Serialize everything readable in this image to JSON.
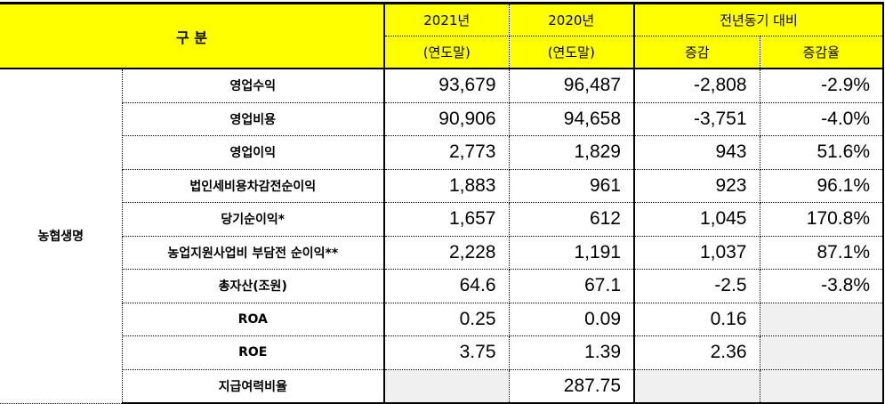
{
  "header": {
    "category": "구    분",
    "col_2021": "2021년",
    "col_2020": "2020년",
    "col_yoy": "전년동기 대비",
    "sub_2021": "(연도말)",
    "sub_2020": "(연도말)",
    "sub_change": "증감",
    "sub_rate": "증감율"
  },
  "group": "농협생명",
  "rows": [
    {
      "label": "영업수익",
      "y2021": "93,679",
      "y2020": "96,487",
      "change": "-2,808",
      "rate": "-2.9%"
    },
    {
      "label": "영업비용",
      "y2021": "90,906",
      "y2020": "94,658",
      "change": "-3,751",
      "rate": "-4.0%"
    },
    {
      "label": "영업이익",
      "y2021": "2,773",
      "y2020": "1,829",
      "change": "943",
      "rate": "51.6%"
    },
    {
      "label": "법인세비용차감전순이익",
      "y2021": "1,883",
      "y2020": "961",
      "change": "923",
      "rate": "96.1%"
    },
    {
      "label": "당기순이익*",
      "y2021": "1,657",
      "y2020": "612",
      "change": "1,045",
      "rate": "170.8%"
    },
    {
      "label": "농업지원사업비 부담전 순이익**",
      "y2021": "2,228",
      "y2020": "1,191",
      "change": "1,037",
      "rate": "87.1%"
    },
    {
      "label": "총자산(조원)",
      "y2021": "64.6",
      "y2020": "67.1",
      "change": "-2.5",
      "rate": "-3.8%"
    },
    {
      "label": "ROA",
      "y2021": "0.25",
      "y2020": "0.09",
      "change": "0.16",
      "rate": ""
    },
    {
      "label": "ROE",
      "y2021": "3.75",
      "y2020": "1.39",
      "change": "2.36",
      "rate": ""
    },
    {
      "label": "지급여력비율",
      "y2021": "",
      "y2020": "287.75",
      "change": "",
      "rate": ""
    }
  ]
}
